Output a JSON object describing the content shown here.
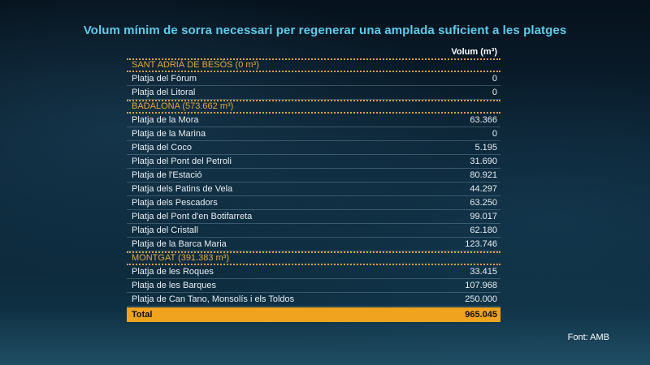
{
  "title": "Volum mínim de sorra necessari per regenerar una amplada suficient a les platges",
  "column_header": "Volum (m³)",
  "sections": [
    {
      "label": "SANT ADRIÀ DE BESÒS (0 m³)",
      "rows": [
        {
          "name": "Platja del Fòrum",
          "value": "0"
        },
        {
          "name": "Platja del Litoral",
          "value": "0"
        }
      ]
    },
    {
      "label": "BADALONA (573.662 m³)",
      "rows": [
        {
          "name": "Platja de la Mora",
          "value": "63.366"
        },
        {
          "name": "Platja de la Marina",
          "value": "0"
        },
        {
          "name": "Platja del Coco",
          "value": "5.195"
        },
        {
          "name": "Platja del Pont del Petroli",
          "value": "31.690"
        },
        {
          "name": "Platja de l'Estació",
          "value": "80.921"
        },
        {
          "name": "Platja dels Patins de Vela",
          "value": "44.297"
        },
        {
          "name": "Platja dels Pescadors",
          "value": "63.250"
        },
        {
          "name": "Platja del Pont d'en Botifarreta",
          "value": "99.017"
        },
        {
          "name": "Platja del Cristall",
          "value": "62.180"
        },
        {
          "name": "Platja de la Barca Maria",
          "value": "123.746"
        }
      ]
    },
    {
      "label": "MONTGAT (391.383 m³)",
      "rows": [
        {
          "name": "Platja de les Roques",
          "value": "33.415"
        },
        {
          "name": "Platja de les Barques",
          "value": "107.968"
        },
        {
          "name": "Platja de Can Tano, Monsolís i els Toldos",
          "value": "250.000"
        }
      ]
    }
  ],
  "total": {
    "label": "Total",
    "value": "965.045"
  },
  "source": "Font: AMB",
  "colors": {
    "title": "#5fcbea",
    "section": "#e2a93b",
    "total_bg": "#f0a31f"
  }
}
